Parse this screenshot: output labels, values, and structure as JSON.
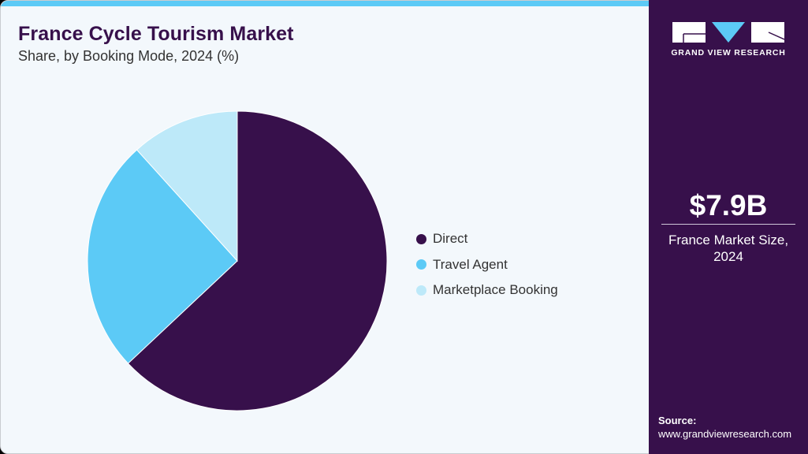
{
  "header": {
    "title": "France Cycle Tourism Market",
    "subtitle": "Share, by Booking Mode, 2024 (%)"
  },
  "sidebar": {
    "logo_text": "GRAND VIEW RESEARCH",
    "market_value": "$7.9B",
    "market_caption_line1": "France Market Size,",
    "market_caption_line2": "2024",
    "source_label": "Source:",
    "source_url": "www.grandviewresearch.com"
  },
  "colors": {
    "direct": "#37104b",
    "travel_agent": "#5ccaf6",
    "marketplace": "#bde9f9",
    "accent_bar": "#5ccaf6",
    "sidebar_bg": "#37104b"
  },
  "legend": {
    "items": [
      {
        "label": "Direct",
        "color": "#37104b"
      },
      {
        "label": "Travel Agent",
        "color": "#5ccaf6"
      },
      {
        "label": "Marketplace Booking",
        "color": "#bde9f9"
      }
    ]
  },
  "chart_data": {
    "type": "pie",
    "title": "France Cycle Tourism Market",
    "subtitle": "Share, by Booking Mode, 2024 (%)",
    "categories": [
      "Direct",
      "Travel Agent",
      "Marketplace Booking"
    ],
    "values": [
      63.0,
      25.3,
      11.7
    ],
    "colors": [
      "#37104b",
      "#5ccaf6",
      "#bde9f9"
    ],
    "start_angle": "12 o'clock, clockwise",
    "legend_position": "right"
  }
}
